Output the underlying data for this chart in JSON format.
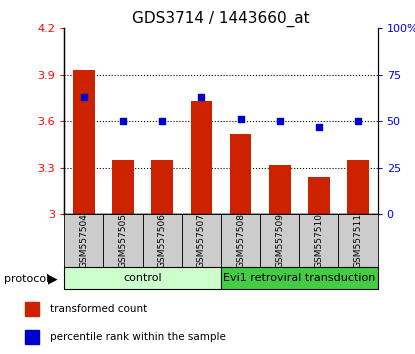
{
  "title": "GDS3714 / 1443660_at",
  "samples": [
    "GSM557504",
    "GSM557505",
    "GSM557506",
    "GSM557507",
    "GSM557508",
    "GSM557509",
    "GSM557510",
    "GSM557511"
  ],
  "bar_values": [
    3.93,
    3.35,
    3.35,
    3.73,
    3.52,
    3.32,
    3.24,
    3.35
  ],
  "percentile_values": [
    63,
    50,
    50,
    63,
    51,
    50,
    47,
    50
  ],
  "ylim_left": [
    3.0,
    4.2
  ],
  "ylim_right": [
    0,
    100
  ],
  "yticks_left": [
    3.0,
    3.3,
    3.6,
    3.9,
    4.2
  ],
  "ytick_labels_left": [
    "3",
    "3.3",
    "3.6",
    "3.9",
    "4.2"
  ],
  "yticks_right": [
    0,
    25,
    50,
    75,
    100
  ],
  "ytick_labels_right": [
    "0",
    "25",
    "50",
    "75",
    "100%"
  ],
  "bar_color": "#cc2200",
  "dot_color": "#0000cc",
  "bar_bottom": 3.0,
  "control_label": "control",
  "treatment_label": "Evi1 retroviral transduction",
  "control_bg": "#ccffcc",
  "treatment_bg": "#44cc44",
  "sample_bg": "#cccccc",
  "protocol_label": "protocol",
  "legend_bar_label": "transformed count",
  "legend_dot_label": "percentile rank within the sample",
  "title_fontsize": 11,
  "tick_fontsize": 8,
  "label_fontsize": 8
}
